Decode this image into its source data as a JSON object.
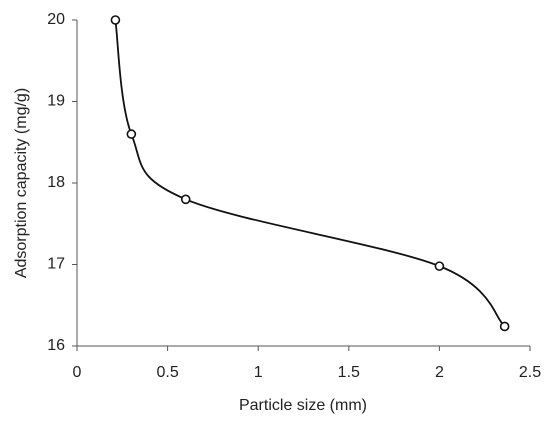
{
  "chart_data": {
    "type": "line",
    "x_label": "Particle size (mm)",
    "y_label": "Adsorption capacity (mg/g)",
    "x": [
      0.212,
      0.3,
      0.6,
      2.0,
      2.36
    ],
    "values": [
      20.0,
      18.6,
      17.8,
      16.98,
      16.24
    ],
    "color": "#111111",
    "marker_fill": "#ffffff",
    "smooth": true,
    "markers": true,
    "grid": false,
    "xlim": [
      0,
      2.5
    ],
    "xticks": [
      0,
      0.5,
      1,
      1.5,
      2,
      2.5
    ],
    "ylim": [
      16,
      20
    ],
    "yticks": [
      16,
      17,
      18,
      19,
      20
    ]
  }
}
